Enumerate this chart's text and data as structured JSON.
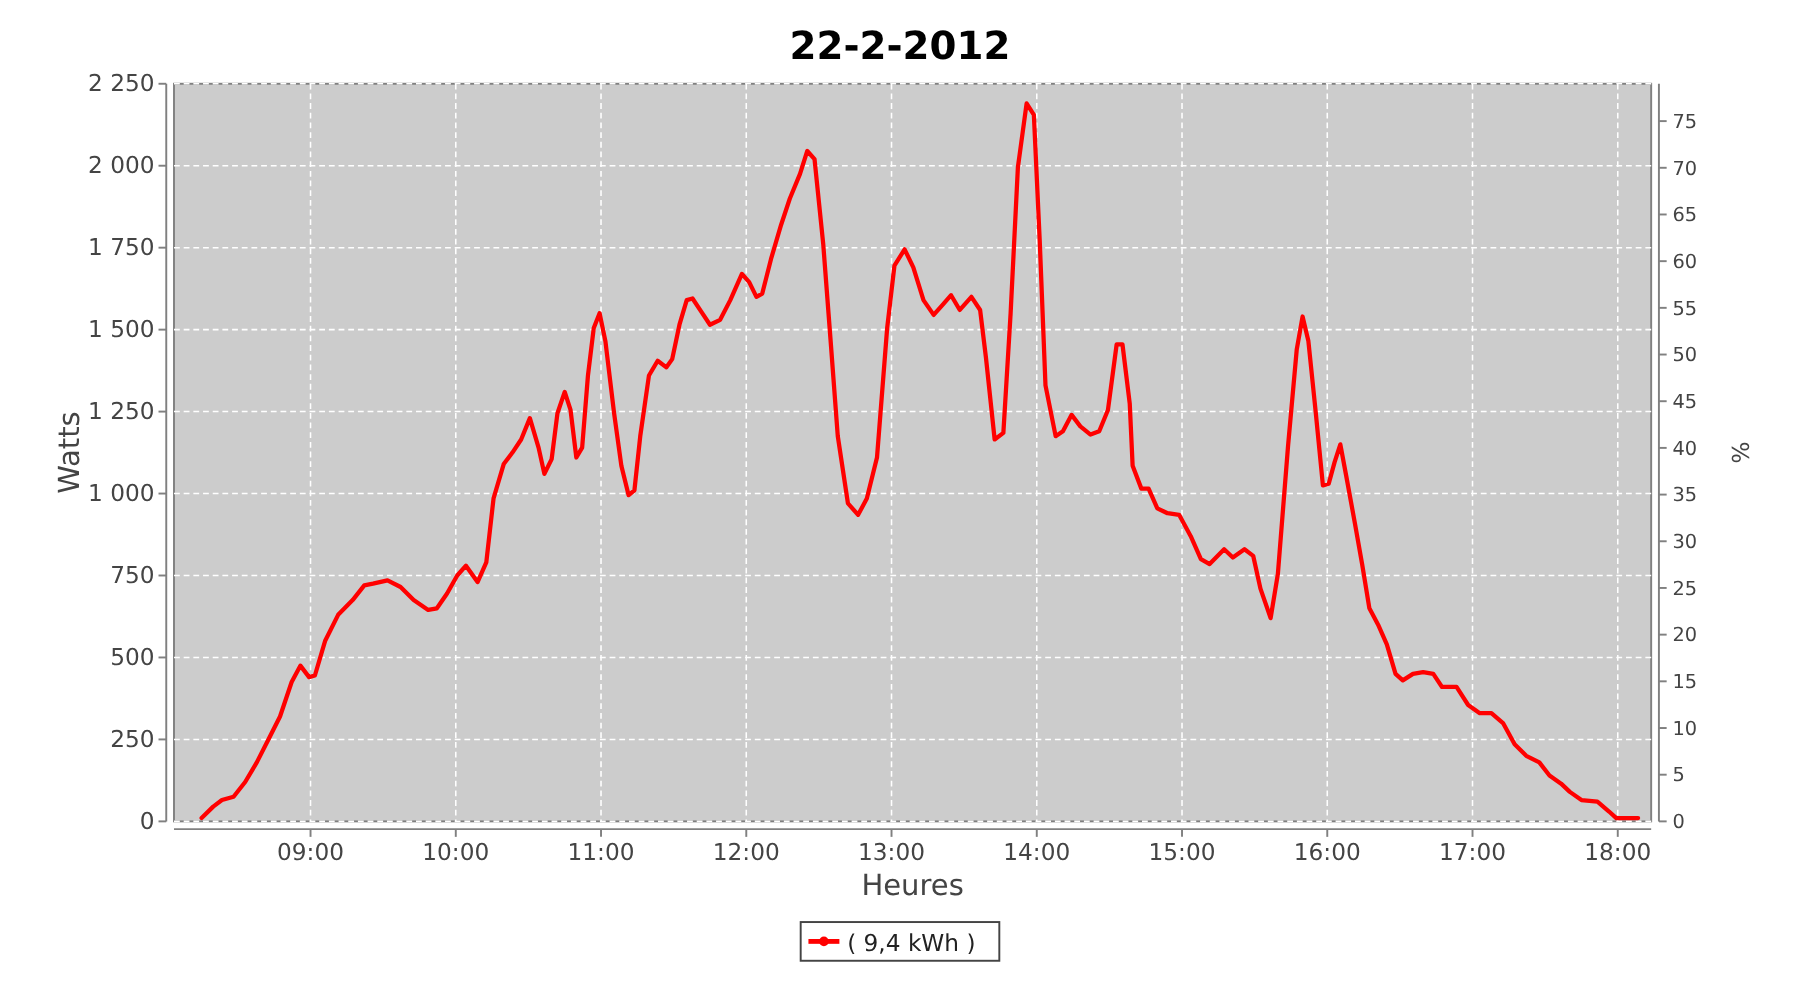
{
  "chart_data": {
    "type": "line",
    "title": "22-2-2012",
    "xlabel": "Heures",
    "ylabel": "Watts",
    "y2label": "%",
    "xlim": [
      8.06,
      18.23
    ],
    "xticks": [
      {
        "value": 9,
        "label": "09:00"
      },
      {
        "value": 10,
        "label": "10:00"
      },
      {
        "value": 11,
        "label": "11:00"
      },
      {
        "value": 12,
        "label": "12:00"
      },
      {
        "value": 13,
        "label": "13:00"
      },
      {
        "value": 14,
        "label": "14:00"
      },
      {
        "value": 15,
        "label": "15:00"
      },
      {
        "value": 16,
        "label": "16:00"
      },
      {
        "value": 17,
        "label": "17:00"
      },
      {
        "value": 18,
        "label": "18:00"
      }
    ],
    "ylim": [
      0,
      2250
    ],
    "yticks": [
      0,
      250,
      500,
      750,
      {
        "value": 1000,
        "label": "1 000"
      },
      {
        "value": 1250,
        "label": "1 250"
      },
      {
        "value": 1500,
        "label": "1 500"
      },
      {
        "value": 1750,
        "label": "1 750"
      },
      {
        "value": 2000,
        "label": "2 000"
      },
      {
        "value": 2250,
        "label": "2 250"
      }
    ],
    "y2lim": [
      0,
      79
    ],
    "y2ticks": [
      0,
      5,
      10,
      15,
      20,
      25,
      30,
      35,
      40,
      45,
      50,
      55,
      60,
      65,
      70,
      75
    ],
    "grid": true,
    "legend": "bottom",
    "marker": "none",
    "line_style": "solid",
    "series": [
      {
        "name": "( 9,4 kWh )",
        "color": "#ff0000",
        "x": [
          8.25,
          8.33,
          8.39,
          8.47,
          8.55,
          8.63,
          8.71,
          8.79,
          8.87,
          8.93,
          8.99,
          9.03,
          9.1,
          9.19,
          9.29,
          9.37,
          9.43,
          9.53,
          9.62,
          9.71,
          9.81,
          9.87,
          9.94,
          10.01,
          10.07,
          10.15,
          10.21,
          10.26,
          10.33,
          10.39,
          10.45,
          10.51,
          10.57,
          10.61,
          10.66,
          10.7,
          10.75,
          10.79,
          10.83,
          10.87,
          10.91,
          10.95,
          10.99,
          11.03,
          11.09,
          11.14,
          11.19,
          11.23,
          11.27,
          11.33,
          11.39,
          11.45,
          11.49,
          11.54,
          11.59,
          11.63,
          11.69,
          11.75,
          11.82,
          11.89,
          11.97,
          12.02,
          12.07,
          12.11,
          12.17,
          12.24,
          12.3,
          12.37,
          12.42,
          12.47,
          12.53,
          12.58,
          12.63,
          12.7,
          12.77,
          12.83,
          12.9,
          12.97,
          13.02,
          13.09,
          13.15,
          13.22,
          13.29,
          13.35,
          13.41,
          13.47,
          13.55,
          13.61,
          13.65,
          13.71,
          13.77,
          13.82,
          13.87,
          13.93,
          13.98,
          14.02,
          14.06,
          14.13,
          14.18,
          14.24,
          14.3,
          14.37,
          14.43,
          14.49,
          14.55,
          14.59,
          14.64,
          14.66,
          14.72,
          14.77,
          14.83,
          14.9,
          14.98,
          15.06,
          15.13,
          15.19,
          15.29,
          15.35,
          15.43,
          15.49,
          15.54,
          15.61,
          15.66,
          15.73,
          15.79,
          15.83,
          15.87,
          15.92,
          15.97,
          16.01,
          16.05,
          16.09,
          16.13,
          16.19,
          16.24,
          16.29,
          16.35,
          16.41,
          16.47,
          16.52,
          16.59,
          16.66,
          16.73,
          16.79,
          16.89,
          16.97,
          17.05,
          17.13,
          17.21,
          17.29,
          17.37,
          17.46,
          17.53,
          17.61,
          17.67,
          17.75,
          17.86,
          17.94,
          17.99,
          18.1,
          18.14
        ],
        "values": [
          10,
          45,
          65,
          75,
          120,
          180,
          250,
          320,
          425,
          475,
          440,
          445,
          550,
          630,
          675,
          720,
          725,
          735,
          715,
          675,
          645,
          650,
          695,
          750,
          780,
          730,
          790,
          985,
          1090,
          1125,
          1165,
          1230,
          1140,
          1060,
          1105,
          1245,
          1310,
          1255,
          1110,
          1140,
          1360,
          1505,
          1550,
          1465,
          1245,
          1085,
          995,
          1010,
          1175,
          1360,
          1405,
          1385,
          1410,
          1515,
          1590,
          1595,
          1555,
          1515,
          1530,
          1590,
          1670,
          1645,
          1600,
          1610,
          1715,
          1820,
          1900,
          1975,
          2045,
          2020,
          1760,
          1470,
          1175,
          970,
          935,
          985,
          1110,
          1505,
          1695,
          1745,
          1690,
          1590,
          1545,
          1575,
          1605,
          1560,
          1600,
          1560,
          1415,
          1165,
          1185,
          1550,
          1995,
          2190,
          2155,
          1775,
          1330,
          1175,
          1190,
          1240,
          1205,
          1180,
          1190,
          1255,
          1455,
          1455,
          1275,
          1085,
          1015,
          1015,
          955,
          940,
          935,
          870,
          800,
          785,
          830,
          805,
          830,
          810,
          710,
          620,
          755,
          1145,
          1440,
          1540,
          1465,
          1250,
          1025,
          1030,
          1095,
          1150,
          1055,
          910,
          785,
          650,
          600,
          540,
          450,
          430,
          450,
          455,
          450,
          410,
          410,
          355,
          330,
          330,
          300,
          235,
          200,
          180,
          140,
          115,
          90,
          65,
          60,
          30,
          10,
          10,
          10
        ]
      }
    ]
  }
}
